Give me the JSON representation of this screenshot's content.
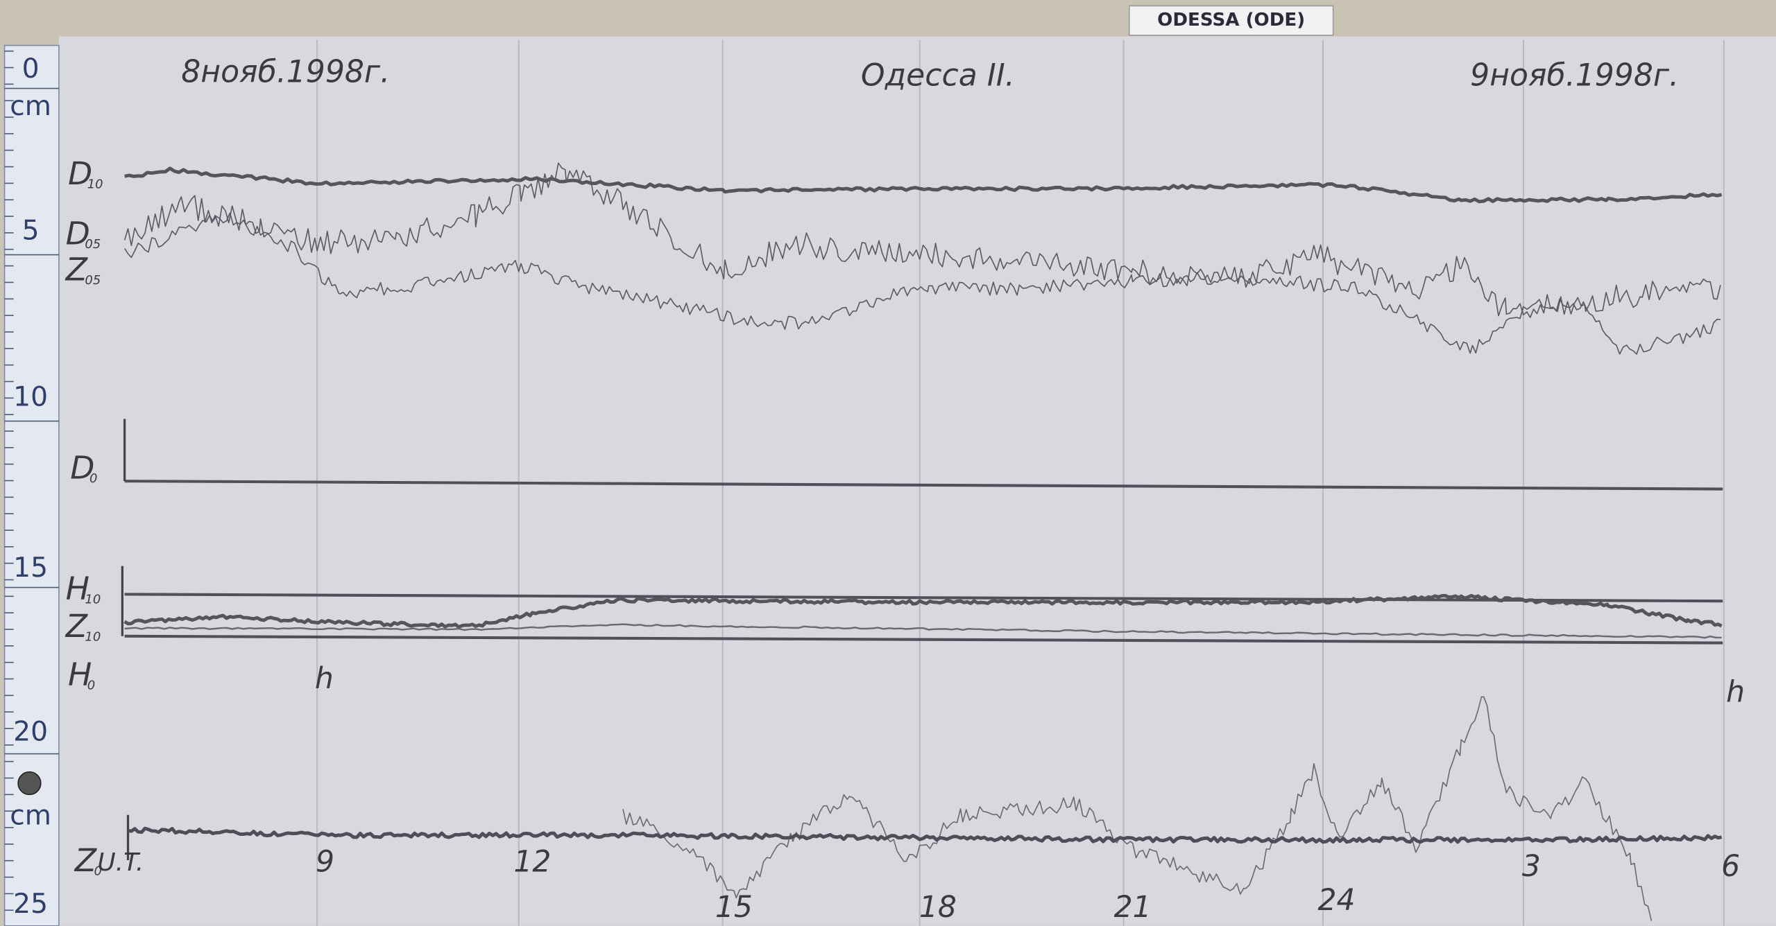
{
  "header": {
    "station": "ODESSA (ODE)",
    "date_start": "8нояб.1998г.",
    "title": "Одесса II.",
    "date_end": "9нояб.1998г."
  },
  "scale": {
    "labels": [
      "0",
      "cm",
      "5",
      "10",
      "15",
      "20",
      "cm",
      "25"
    ]
  },
  "traces": [
    {
      "name": "D",
      "sub": "10"
    },
    {
      "name": "D",
      "sub": "05"
    },
    {
      "name": "Z",
      "sub": "05"
    },
    {
      "name": "D",
      "sub": "0"
    },
    {
      "name": "H",
      "sub": "10"
    },
    {
      "name": "Z",
      "sub": "10"
    },
    {
      "name": "H",
      "sub": "0"
    },
    {
      "name": "Z",
      "sub": "0"
    }
  ],
  "time_axis": {
    "label": "U.T.",
    "hours": [
      "9",
      "12",
      "15",
      "18",
      "21",
      "24",
      "3",
      "6"
    ],
    "unit": [
      "h",
      "h"
    ]
  }
}
